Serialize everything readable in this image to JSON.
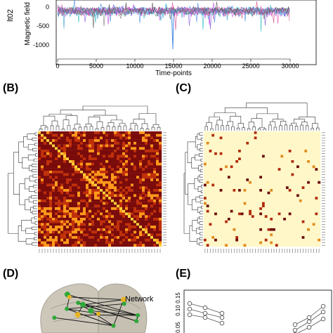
{
  "panels": {
    "B": "(B)",
    "C": "(C)",
    "D": "(D)",
    "E": "(E)"
  },
  "timeseries": {
    "ylabel_fragment": "lt02",
    "ylabel": "Magnetic field s",
    "xlabel": "Time-points",
    "x_ticks": [
      "0",
      "5000",
      "10000",
      "15000",
      "20000",
      "25000",
      "30000"
    ],
    "y_ticks": [
      "0",
      "-500",
      "-1000"
    ]
  },
  "network_label": "Network",
  "panel_e_ticks": [
    "0.15",
    "0.10",
    "0.05"
  ],
  "colors": {
    "heat_dark": "#7a0b0b",
    "heat_mid": "#c0300a",
    "heat_bright": "#ff9a1a",
    "sparse_bg": "#fff7c8",
    "brain": "#c9c3b6",
    "node_green": "#2fa83a",
    "node_yellow": "#e6b422"
  }
}
